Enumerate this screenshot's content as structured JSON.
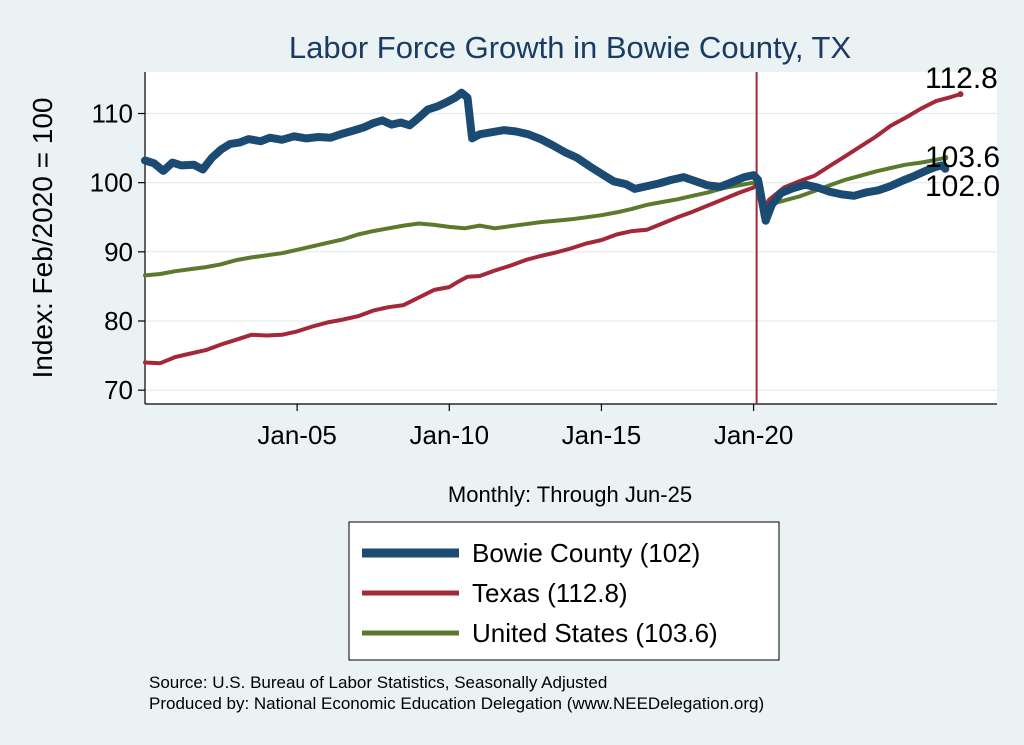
{
  "chart_data": {
    "type": "line",
    "title": "Labor Force Growth in Bowie  County, TX",
    "ylabel": "Index: Feb/2020 = 100",
    "xlabel": "Monthly: Through Jun-25",
    "ylim": [
      68,
      116
    ],
    "xlim": [
      2000.0,
      2028.0
    ],
    "yticks": [
      70,
      80,
      90,
      100,
      110
    ],
    "xticks": [
      {
        "label": "Jan-05",
        "value": 2005.0
      },
      {
        "label": "Jan-10",
        "value": 2010.0
      },
      {
        "label": "Jan-15",
        "value": 2015.0
      },
      {
        "label": "Jan-20",
        "value": 2020.0
      }
    ],
    "reference_line": {
      "x": 2020.1,
      "color": "#a3283a"
    },
    "end_labels": [
      {
        "text": "112.8",
        "series": "Texas",
        "y": 112.8
      },
      {
        "text": "103.6",
        "series": "United States",
        "y": 103.6
      },
      {
        "text": "102.0",
        "series": "Bowie  County",
        "y": 102.0
      }
    ],
    "series": [
      {
        "name": "Bowie  County",
        "color": "#1b4a72",
        "width": 8,
        "points": [
          [
            2000.0,
            103.2
          ],
          [
            2000.3,
            102.8
          ],
          [
            2000.6,
            101.7
          ],
          [
            2000.9,
            102.9
          ],
          [
            2001.2,
            102.5
          ],
          [
            2001.6,
            102.6
          ],
          [
            2001.9,
            101.9
          ],
          [
            2002.2,
            103.6
          ],
          [
            2002.5,
            104.8
          ],
          [
            2002.8,
            105.6
          ],
          [
            2003.1,
            105.8
          ],
          [
            2003.4,
            106.3
          ],
          [
            2003.8,
            106.0
          ],
          [
            2004.1,
            106.5
          ],
          [
            2004.5,
            106.2
          ],
          [
            2004.9,
            106.7
          ],
          [
            2005.3,
            106.4
          ],
          [
            2005.7,
            106.6
          ],
          [
            2006.1,
            106.5
          ],
          [
            2006.5,
            107.1
          ],
          [
            2006.9,
            107.6
          ],
          [
            2007.2,
            108.0
          ],
          [
            2007.5,
            108.6
          ],
          [
            2007.8,
            109.0
          ],
          [
            2008.1,
            108.4
          ],
          [
            2008.4,
            108.7
          ],
          [
            2008.7,
            108.3
          ],
          [
            2009.0,
            109.4
          ],
          [
            2009.3,
            110.6
          ],
          [
            2009.6,
            111.0
          ],
          [
            2009.9,
            111.6
          ],
          [
            2010.2,
            112.3
          ],
          [
            2010.4,
            113.0
          ],
          [
            2010.6,
            112.3
          ],
          [
            2010.75,
            106.4
          ],
          [
            2011.0,
            107.0
          ],
          [
            2011.4,
            107.3
          ],
          [
            2011.8,
            107.6
          ],
          [
            2012.2,
            107.4
          ],
          [
            2012.6,
            107.0
          ],
          [
            2013.0,
            106.3
          ],
          [
            2013.4,
            105.4
          ],
          [
            2013.8,
            104.4
          ],
          [
            2014.2,
            103.6
          ],
          [
            2014.6,
            102.4
          ],
          [
            2015.0,
            101.3
          ],
          [
            2015.4,
            100.2
          ],
          [
            2015.8,
            99.8
          ],
          [
            2016.1,
            99.1
          ],
          [
            2016.5,
            99.5
          ],
          [
            2016.9,
            99.9
          ],
          [
            2017.3,
            100.4
          ],
          [
            2017.7,
            100.8
          ],
          [
            2018.1,
            100.2
          ],
          [
            2018.5,
            99.6
          ],
          [
            2018.9,
            99.4
          ],
          [
            2019.3,
            100.1
          ],
          [
            2019.7,
            100.8
          ],
          [
            2020.0,
            101.1
          ],
          [
            2020.15,
            100.4
          ],
          [
            2020.4,
            94.5
          ],
          [
            2020.6,
            96.8
          ],
          [
            2020.9,
            98.5
          ],
          [
            2021.3,
            99.2
          ],
          [
            2021.7,
            99.7
          ],
          [
            2022.1,
            99.3
          ],
          [
            2022.5,
            98.7
          ],
          [
            2022.9,
            98.3
          ],
          [
            2023.3,
            98.1
          ],
          [
            2023.7,
            98.6
          ],
          [
            2024.1,
            98.9
          ],
          [
            2024.5,
            99.5
          ],
          [
            2024.9,
            100.3
          ],
          [
            2025.3,
            101.0
          ],
          [
            2025.7,
            101.8
          ],
          [
            2026.0,
            102.3
          ],
          [
            2026.2,
            102.5
          ],
          [
            2026.3,
            102.0
          ]
        ]
      },
      {
        "name": "Texas",
        "color": "#a3283a",
        "width": 4,
        "points": [
          [
            2000.0,
            74.0
          ],
          [
            2000.5,
            73.9
          ],
          [
            2001.0,
            74.8
          ],
          [
            2001.5,
            75.3
          ],
          [
            2002.0,
            75.8
          ],
          [
            2002.5,
            76.6
          ],
          [
            2003.0,
            77.3
          ],
          [
            2003.5,
            78.0
          ],
          [
            2004.0,
            77.9
          ],
          [
            2004.5,
            78.0
          ],
          [
            2005.0,
            78.5
          ],
          [
            2005.5,
            79.2
          ],
          [
            2006.0,
            79.8
          ],
          [
            2006.5,
            80.2
          ],
          [
            2007.0,
            80.7
          ],
          [
            2007.5,
            81.5
          ],
          [
            2008.0,
            82.0
          ],
          [
            2008.5,
            82.3
          ],
          [
            2009.0,
            83.4
          ],
          [
            2009.5,
            84.5
          ],
          [
            2010.0,
            84.9
          ],
          [
            2010.3,
            85.7
          ],
          [
            2010.6,
            86.4
          ],
          [
            2011.0,
            86.5
          ],
          [
            2011.5,
            87.3
          ],
          [
            2012.0,
            88.0
          ],
          [
            2012.5,
            88.8
          ],
          [
            2013.0,
            89.4
          ],
          [
            2013.5,
            89.9
          ],
          [
            2014.0,
            90.5
          ],
          [
            2014.5,
            91.2
          ],
          [
            2015.0,
            91.7
          ],
          [
            2015.5,
            92.5
          ],
          [
            2016.0,
            93.0
          ],
          [
            2016.5,
            93.2
          ],
          [
            2017.0,
            94.1
          ],
          [
            2017.5,
            95.0
          ],
          [
            2018.0,
            95.8
          ],
          [
            2018.5,
            96.7
          ],
          [
            2019.0,
            97.6
          ],
          [
            2019.5,
            98.5
          ],
          [
            2020.0,
            99.3
          ],
          [
            2020.15,
            100.0
          ],
          [
            2020.3,
            95.5
          ],
          [
            2020.5,
            97.5
          ],
          [
            2021.0,
            99.3
          ],
          [
            2021.5,
            100.2
          ],
          [
            2022.0,
            101.0
          ],
          [
            2022.5,
            102.4
          ],
          [
            2023.0,
            103.8
          ],
          [
            2023.5,
            105.2
          ],
          [
            2024.0,
            106.6
          ],
          [
            2024.5,
            108.2
          ],
          [
            2025.0,
            109.4
          ],
          [
            2025.5,
            110.7
          ],
          [
            2026.0,
            111.8
          ],
          [
            2026.5,
            112.4
          ],
          [
            2026.8,
            112.8
          ]
        ]
      },
      {
        "name": "United States",
        "color": "#5b7a2d",
        "width": 4,
        "points": [
          [
            2000.0,
            86.6
          ],
          [
            2000.5,
            86.8
          ],
          [
            2001.0,
            87.2
          ],
          [
            2001.5,
            87.5
          ],
          [
            2002.0,
            87.8
          ],
          [
            2002.5,
            88.2
          ],
          [
            2003.0,
            88.8
          ],
          [
            2003.5,
            89.2
          ],
          [
            2004.0,
            89.5
          ],
          [
            2004.5,
            89.8
          ],
          [
            2005.0,
            90.3
          ],
          [
            2005.5,
            90.8
          ],
          [
            2006.0,
            91.3
          ],
          [
            2006.5,
            91.8
          ],
          [
            2007.0,
            92.5
          ],
          [
            2007.5,
            93.0
          ],
          [
            2008.0,
            93.4
          ],
          [
            2008.5,
            93.8
          ],
          [
            2009.0,
            94.1
          ],
          [
            2009.5,
            93.9
          ],
          [
            2010.0,
            93.6
          ],
          [
            2010.5,
            93.4
          ],
          [
            2011.0,
            93.8
          ],
          [
            2011.5,
            93.4
          ],
          [
            2012.0,
            93.7
          ],
          [
            2012.5,
            94.0
          ],
          [
            2013.0,
            94.3
          ],
          [
            2013.5,
            94.5
          ],
          [
            2014.0,
            94.7
          ],
          [
            2014.5,
            95.0
          ],
          [
            2015.0,
            95.3
          ],
          [
            2015.5,
            95.7
          ],
          [
            2016.0,
            96.2
          ],
          [
            2016.5,
            96.8
          ],
          [
            2017.0,
            97.2
          ],
          [
            2017.5,
            97.6
          ],
          [
            2018.0,
            98.1
          ],
          [
            2018.5,
            98.6
          ],
          [
            2019.0,
            99.2
          ],
          [
            2019.5,
            99.6
          ],
          [
            2020.0,
            100.0
          ],
          [
            2020.15,
            100.1
          ],
          [
            2020.3,
            95.2
          ],
          [
            2020.5,
            96.8
          ],
          [
            2021.0,
            97.4
          ],
          [
            2021.5,
            98.0
          ],
          [
            2022.0,
            98.8
          ],
          [
            2022.5,
            99.6
          ],
          [
            2023.0,
            100.4
          ],
          [
            2023.5,
            101.0
          ],
          [
            2024.0,
            101.6
          ],
          [
            2024.5,
            102.1
          ],
          [
            2025.0,
            102.6
          ],
          [
            2025.5,
            102.9
          ],
          [
            2026.0,
            103.3
          ],
          [
            2026.3,
            103.6
          ]
        ]
      }
    ],
    "legend": {
      "position": "bottom-center",
      "entries": [
        {
          "label": "Bowie  County (102)",
          "color": "#1b4a72",
          "width": 9
        },
        {
          "label": "Texas (112.8)",
          "color": "#a3283a",
          "width": 5
        },
        {
          "label": "United States (103.6)",
          "color": "#5b7a2d",
          "width": 5
        }
      ]
    },
    "source_lines": [
      "Source: U.S. Bureau of Labor Statistics, Seasonally Adjusted",
      "Produced by: National Economic Education Delegation (www.NEEDelegation.org)"
    ]
  }
}
